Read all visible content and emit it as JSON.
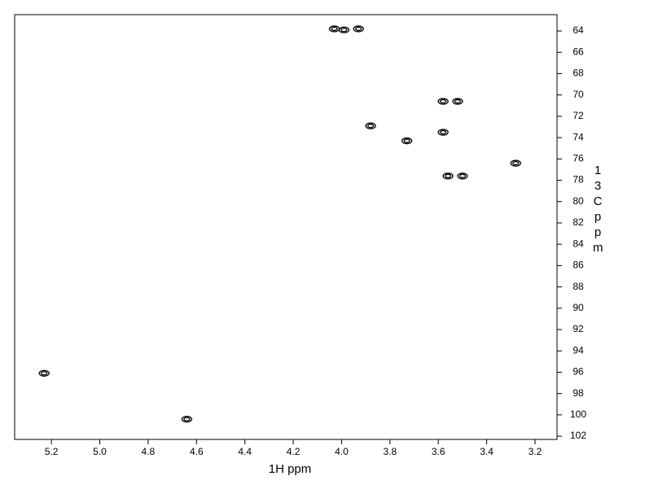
{
  "chart_data": {
    "type": "scatter",
    "x_label": "1H ppm",
    "y_label": "13C ppm",
    "x": [
      5.23,
      4.64,
      4.03,
      3.99,
      3.93,
      3.58,
      3.52,
      3.88,
      3.58,
      3.73,
      3.28,
      3.56,
      3.5
    ],
    "values": [
      96.1,
      100.4,
      63.8,
      63.9,
      63.8,
      70.6,
      70.6,
      72.9,
      73.5,
      74.3,
      76.4,
      77.6,
      77.6
    ],
    "color": "#000000",
    "xlim": [
      5.352,
      3.109
    ],
    "xticks": [
      5.2,
      {
        "value": 5.0,
        "label": "5.0"
      },
      4.8,
      4.6,
      4.4,
      4.2,
      {
        "value": 4.0,
        "label": "4.0"
      },
      3.8,
      3.6,
      3.4,
      3.2
    ],
    "ylim": [
      62.47,
      102.3
    ],
    "yticks": [
      64,
      66,
      68,
      70,
      72,
      74,
      76,
      78,
      80,
      82,
      84,
      86,
      88,
      90,
      92,
      94,
      96,
      98,
      100,
      102
    ]
  }
}
